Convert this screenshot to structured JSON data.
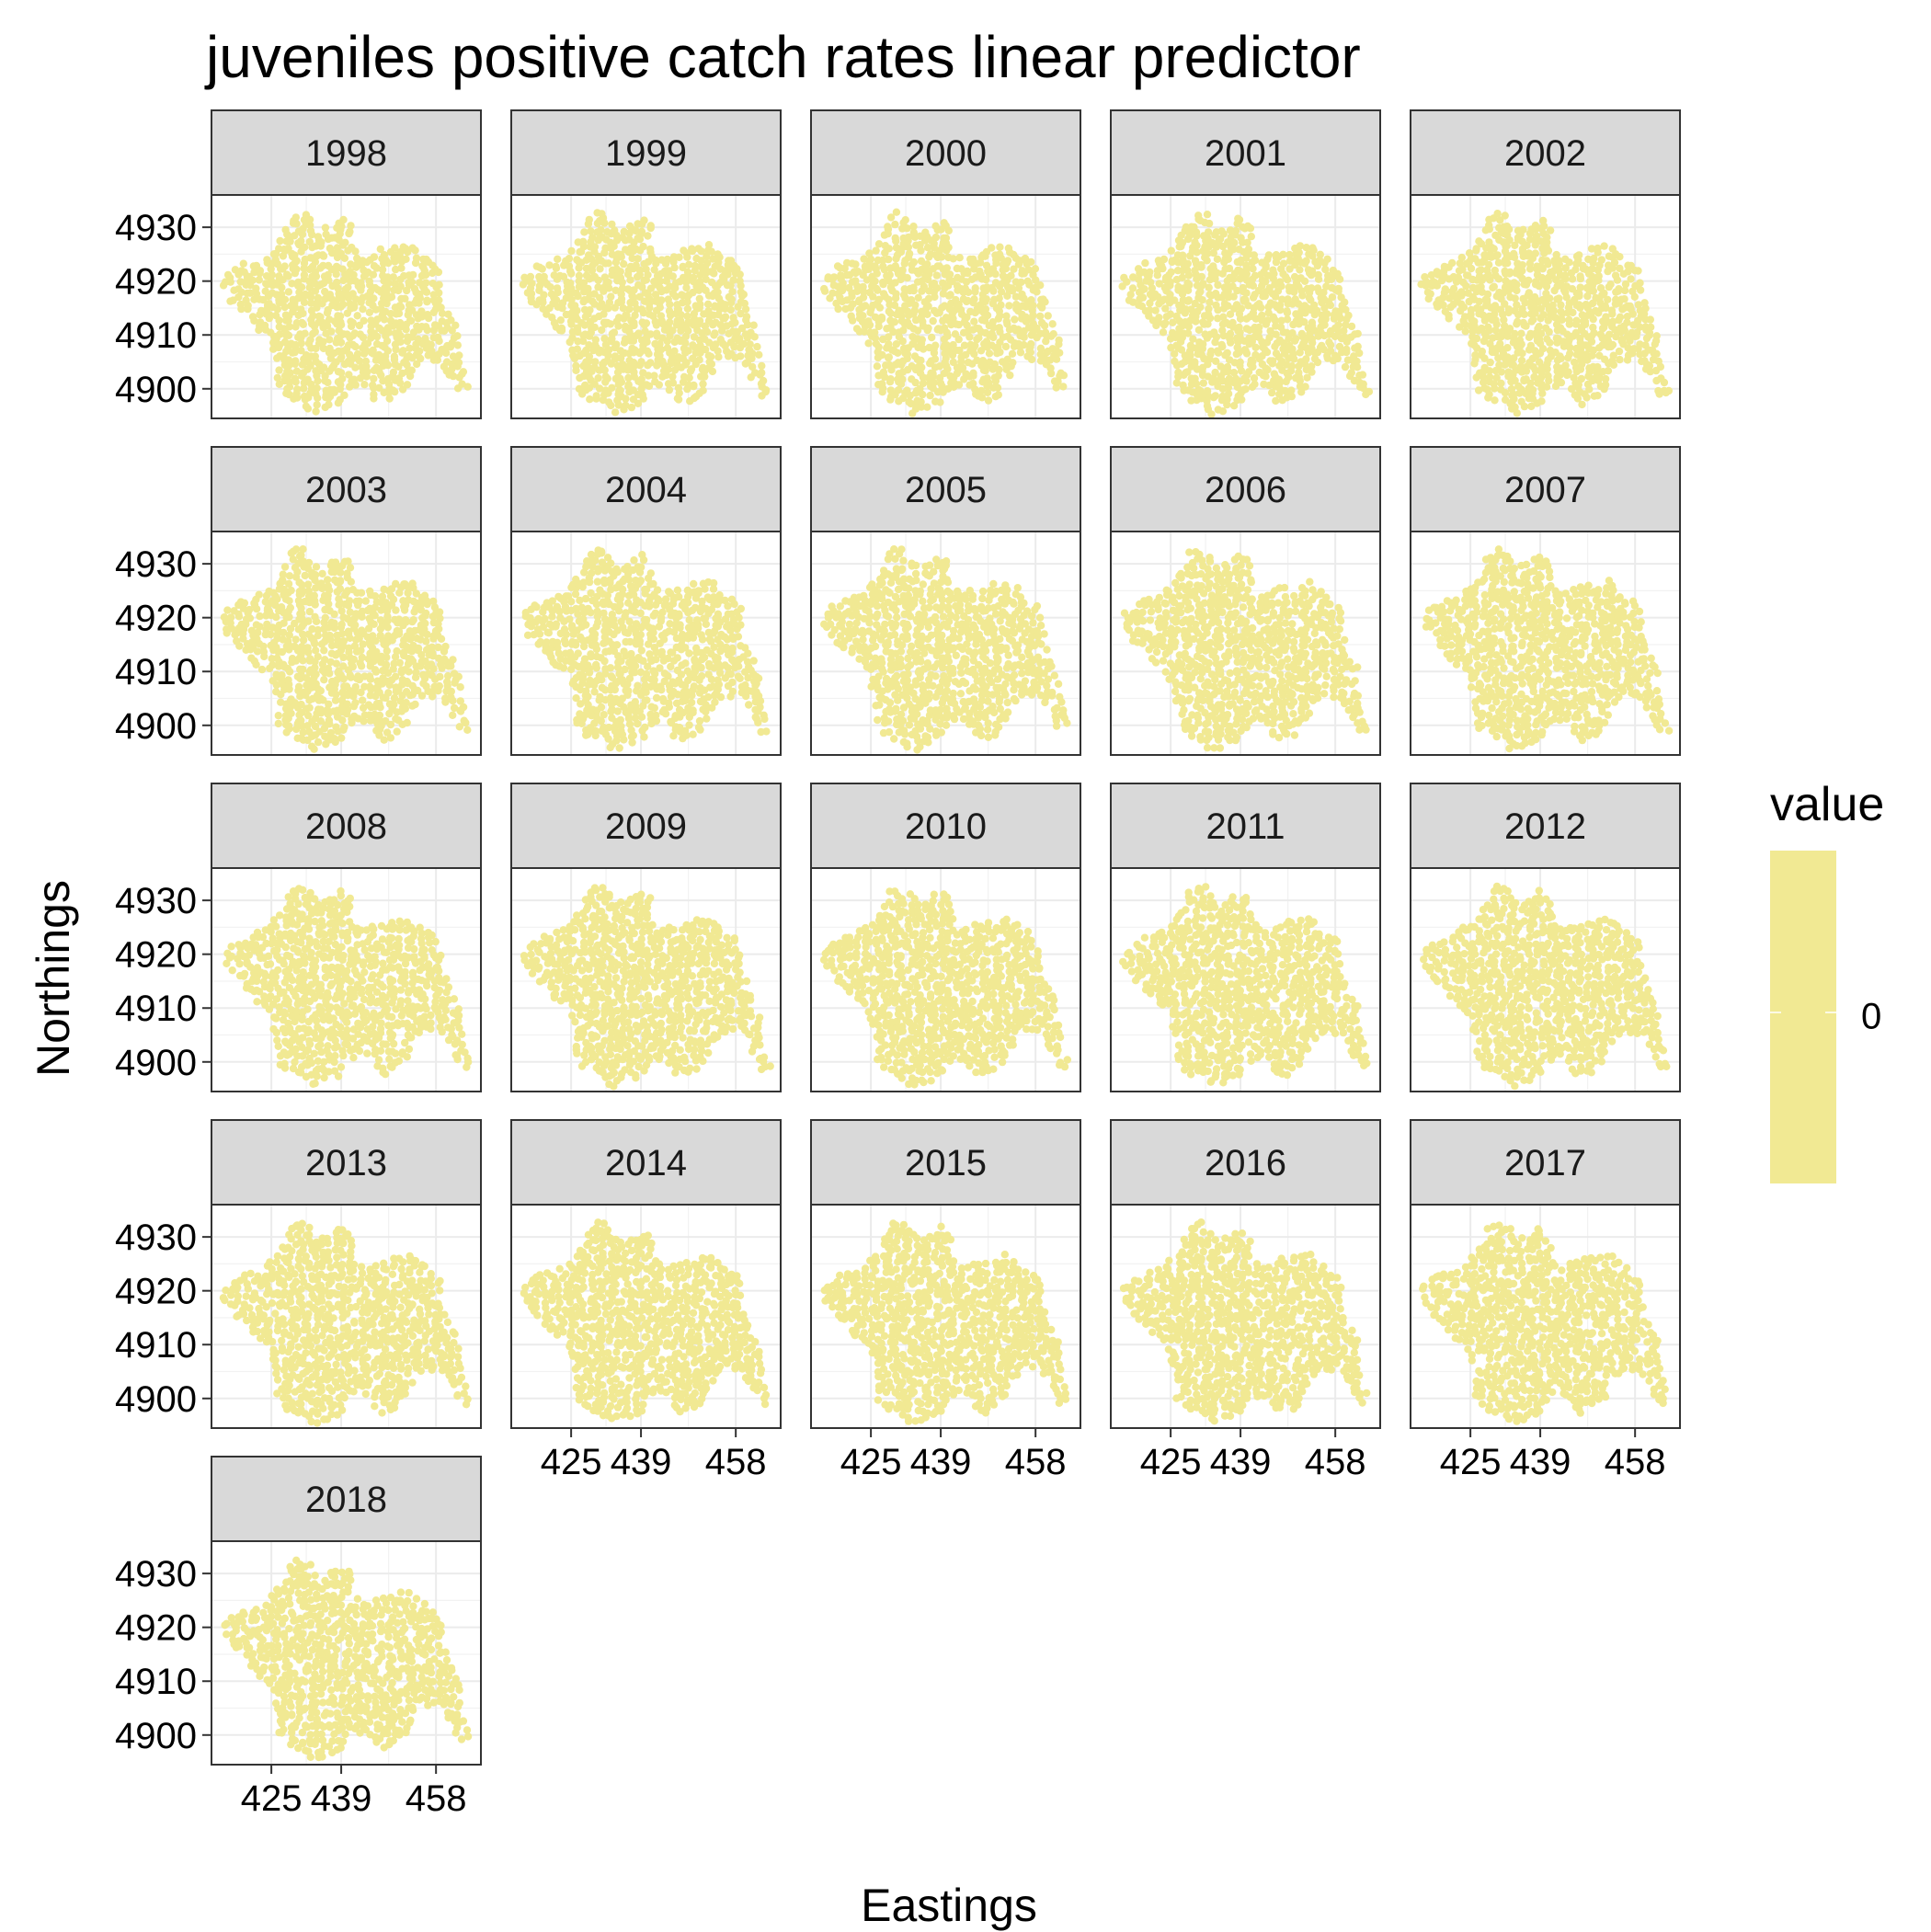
{
  "chart_data": {
    "type": "scatter",
    "title": "juveniles positive catch rates linear predictor",
    "xlabel": "Eastings",
    "ylabel": "Northings",
    "facets": [
      "1998",
      "1999",
      "2000",
      "2001",
      "2002",
      "2003",
      "2004",
      "2005",
      "2006",
      "2007",
      "2008",
      "2009",
      "2010",
      "2011",
      "2012",
      "2013",
      "2014",
      "2015",
      "2016",
      "2017",
      "2018"
    ],
    "x_ticks": [
      425,
      439,
      458
    ],
    "x_tick_labels": [
      "425",
      "439",
      "458"
    ],
    "y_ticks": [
      4900,
      4910,
      4920,
      4930
    ],
    "y_tick_labels": [
      "4900",
      "4910",
      "4920",
      "4930"
    ],
    "xlim": [
      413,
      467
    ],
    "ylim": [
      4894.5,
      4936
    ],
    "grid": true,
    "point_color": "#F1E993",
    "legend": {
      "title": "value",
      "placement": "right",
      "colors": [
        "#F1E993"
      ],
      "labels": [
        "0"
      ]
    },
    "region_outline": [
      [
        415.5,
        4921
      ],
      [
        418.5,
        4923
      ],
      [
        422,
        4924
      ],
      [
        425,
        4926
      ],
      [
        427.5,
        4929
      ],
      [
        428.5,
        4932
      ],
      [
        430,
        4933
      ],
      [
        432.5,
        4932.5
      ],
      [
        434,
        4930
      ],
      [
        436,
        4930
      ],
      [
        439,
        4932
      ],
      [
        441,
        4930.5
      ],
      [
        441.5,
        4926
      ],
      [
        443.5,
        4924.5
      ],
      [
        447,
        4926
      ],
      [
        450.5,
        4926.5
      ],
      [
        453,
        4927
      ],
      [
        455,
        4925
      ],
      [
        457,
        4924
      ],
      [
        459,
        4922
      ],
      [
        459.5,
        4918
      ],
      [
        460.5,
        4914
      ],
      [
        462.5,
        4911
      ],
      [
        463,
        4906
      ],
      [
        464,
        4902
      ],
      [
        465,
        4899
      ],
      [
        463,
        4898.5
      ],
      [
        461,
        4902
      ],
      [
        459,
        4905
      ],
      [
        455.5,
        4905.5
      ],
      [
        453.5,
        4903
      ],
      [
        452,
        4900
      ],
      [
        450,
        4898
      ],
      [
        447.5,
        4897
      ],
      [
        445.5,
        4898
      ],
      [
        444,
        4900.5
      ],
      [
        440.5,
        4900
      ],
      [
        439.5,
        4897.5
      ],
      [
        436,
        4896
      ],
      [
        433,
        4895
      ],
      [
        431,
        4897
      ],
      [
        428,
        4898
      ],
      [
        426,
        4900
      ],
      [
        426,
        4904
      ],
      [
        425,
        4907.5
      ],
      [
        423.5,
        4910
      ],
      [
        421.5,
        4911.5
      ],
      [
        419.5,
        4914
      ],
      [
        417.5,
        4915.5
      ],
      [
        416,
        4917
      ],
      [
        415,
        4919
      ]
    ],
    "dot_spacing": [
      1.3,
      1.05
    ],
    "x_axis_facets": [
      "2014",
      "2015",
      "2016",
      "2017",
      "2018"
    ],
    "y_axis_facets": [
      "1998",
      "2003",
      "2008",
      "2013",
      "2018"
    ]
  }
}
